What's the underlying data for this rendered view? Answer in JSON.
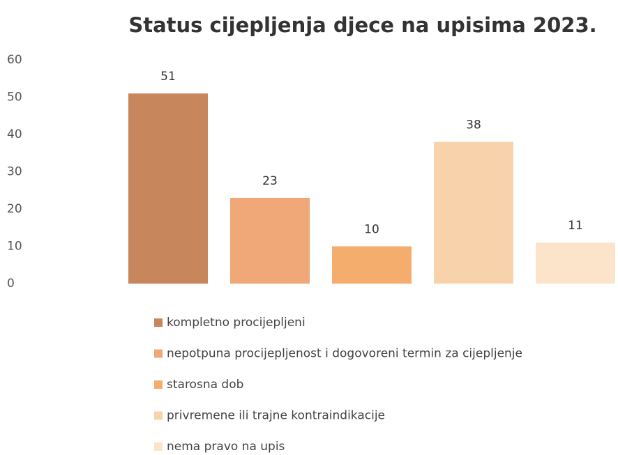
{
  "chart_data": {
    "type": "bar",
    "title": "Status cijepljenja djece na upisima 2023.",
    "categories": [
      "kompletno procijepljeni",
      "nepotpuna procijepljenost i dogovoreni termin za cijepljenje",
      "starosna dob",
      "privremene ili trajne kontraindikacije",
      "nema pravo na upis"
    ],
    "values": [
      51,
      23,
      10,
      38,
      11
    ],
    "colors": [
      "#c8865d",
      "#f0a878",
      "#f5ad6e",
      "#f8d2ab",
      "#fbe4ca"
    ],
    "ylim": [
      0,
      60
    ],
    "yticks": [
      0,
      10,
      20,
      30,
      40,
      50,
      60
    ],
    "grid": false
  }
}
